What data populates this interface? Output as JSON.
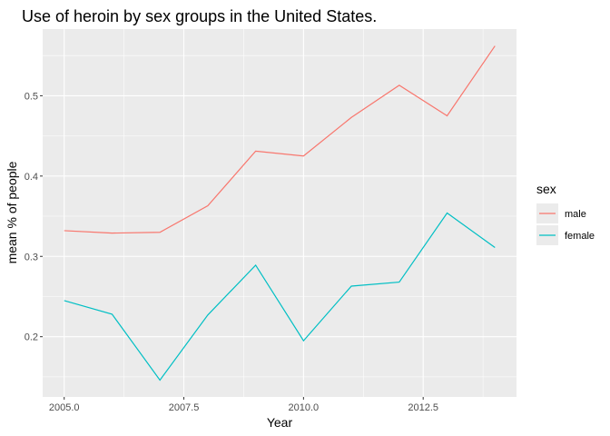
{
  "chart_data": {
    "type": "line",
    "title": "Use of heroin by sex groups in the United States.",
    "xlabel": "Year",
    "ylabel": "mean % of people",
    "x": [
      2005,
      2006,
      2007,
      2008,
      2009,
      2010,
      2011,
      2012,
      2013,
      2014
    ],
    "series": [
      {
        "name": "male",
        "color": "#F8766D",
        "values": [
          0.332,
          0.329,
          0.33,
          0.363,
          0.431,
          0.425,
          0.473,
          0.513,
          0.475,
          0.562
        ]
      },
      {
        "name": "female",
        "color": "#00BFC4",
        "values": [
          0.245,
          0.228,
          0.146,
          0.227,
          0.289,
          0.195,
          0.263,
          0.268,
          0.354,
          0.311
        ]
      }
    ],
    "xlim": [
      2004.55,
      2014.45
    ],
    "ylim": [
      0.125,
      0.583
    ],
    "x_ticks": [
      2005.0,
      2007.5,
      2010.0,
      2012.5
    ],
    "x_tick_labels": [
      "2005.0",
      "2007.5",
      "2010.0",
      "2012.5"
    ],
    "y_ticks": [
      0.2,
      0.3,
      0.4,
      0.5
    ],
    "y_tick_labels": [
      "0.2",
      "0.3",
      "0.4",
      "0.5"
    ],
    "legend": {
      "title": "sex",
      "placement": "right"
    },
    "panel_background": "#EBEBEB",
    "grid_color": "#FFFFFF",
    "grid": true
  }
}
